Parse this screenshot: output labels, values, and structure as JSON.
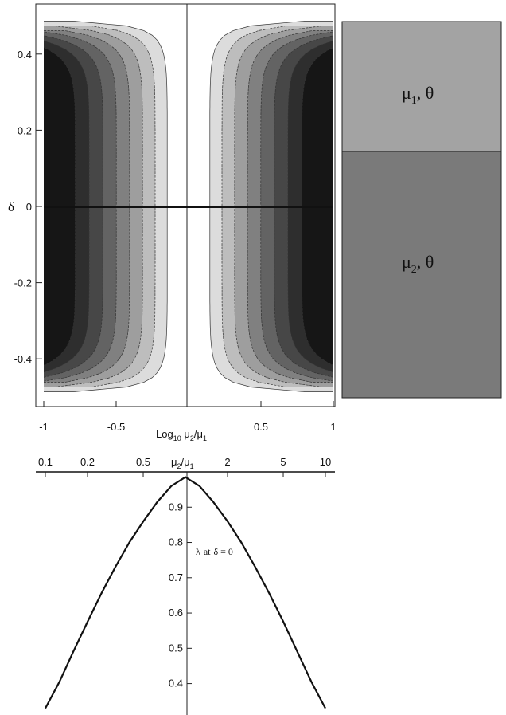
{
  "chart_data": [
    {
      "type": "heatmap",
      "x": {
        "range": [
          -1,
          1
        ],
        "ticks": [
          -1,
          -0.5,
          0.5,
          1
        ],
        "tick_labels": [
          "-1",
          "-0.5",
          "0.5",
          "1"
        ],
        "label": {
          "base": "Log",
          "sub": "10",
          "rest": " μ",
          "sub2": "2",
          "slash": "/μ",
          "sub3": "1"
        }
      },
      "y": {
        "range": [
          -0.5,
          0.5
        ],
        "ticks": [
          -0.4,
          -0.2,
          0,
          0.2,
          0.4
        ],
        "tick_labels": [
          "-0.4",
          "-0.2",
          "0",
          "0.2",
          "0.4"
        ],
        "label": "δ"
      },
      "contour_levels": [
        0.2,
        0.3,
        0.4,
        0.5,
        0.6,
        0.7,
        0.8,
        0.9
      ],
      "shading": [
        "#dcdcdc",
        "#bdbdbd",
        "#9e9e9e",
        "#808080",
        "#636363",
        "#474747",
        "#2e2e2e",
        "#161616"
      ],
      "grid": false
    },
    {
      "type": "diagram",
      "layers": [
        {
          "symbol": "μ",
          "sub": "1",
          "suffix": ", θ",
          "color": "#a3a3a3",
          "fraction": 0.35
        },
        {
          "symbol": "μ",
          "sub": "2",
          "suffix": ", θ",
          "color": "#7a7a7a",
          "fraction": 0.65
        }
      ]
    },
    {
      "type": "line",
      "x_scale": "log",
      "x": {
        "range": [
          0.1,
          10
        ],
        "ticks": [
          0.1,
          0.2,
          0.5,
          2,
          5,
          10
        ],
        "tick_labels": [
          "0.1",
          "0.2",
          "0.5",
          "2",
          "5",
          "10"
        ],
        "label": {
          "symbol": "μ",
          "sub": "2",
          "slash": "/μ",
          "sub2": "1"
        }
      },
      "y": {
        "range": [
          0.32,
          1.0
        ],
        "ticks": [
          0.4,
          0.5,
          0.6,
          0.7,
          0.8,
          0.9
        ],
        "tick_labels": [
          "0.4",
          "0.5",
          "0.6",
          "0.7",
          "0.8",
          "0.9"
        ]
      },
      "series": [
        {
          "x": [
            0.1,
            0.126,
            0.158,
            0.2,
            0.251,
            0.316,
            0.398,
            0.501,
            0.631,
            0.794,
            1,
            1.26,
            1.58,
            2,
            2.51,
            3.16,
            3.98,
            5.01,
            6.31,
            7.94,
            10
          ],
          "y": [
            0.33,
            0.405,
            0.49,
            0.575,
            0.655,
            0.73,
            0.8,
            0.86,
            0.915,
            0.96,
            0.985,
            0.96,
            0.915,
            0.86,
            0.8,
            0.73,
            0.655,
            0.575,
            0.49,
            0.405,
            0.33
          ]
        }
      ],
      "annotation": {
        "symbol": "λ",
        "text": "at",
        "cond": "δ = 0"
      }
    }
  ]
}
